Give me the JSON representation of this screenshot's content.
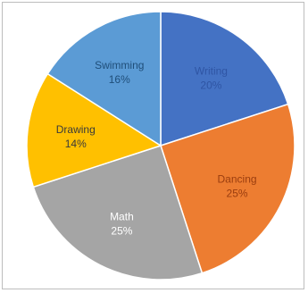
{
  "chart_data": {
    "type": "pie",
    "slices": [
      {
        "label": "Writing",
        "value": 20,
        "display": "20%",
        "color": "#4472c4",
        "label_color": "#2f55a4"
      },
      {
        "label": "Dancing",
        "value": 25,
        "display": "25%",
        "color": "#ed7d31",
        "label_color": "#9a3d0f"
      },
      {
        "label": "Math",
        "value": 25,
        "display": "25%",
        "color": "#a5a5a5",
        "label_color": "#ffffff"
      },
      {
        "label": "Drawing",
        "value": 14,
        "display": "14%",
        "color": "#ffc000",
        "label_color": "#3a3a3a"
      },
      {
        "label": "Swimming",
        "value": 16,
        "display": "16%",
        "color": "#5b9bd5",
        "label_color": "#1f4e79"
      }
    ],
    "start_angle_deg": 0,
    "direction": "clockwise",
    "legend": "none",
    "title": ""
  }
}
